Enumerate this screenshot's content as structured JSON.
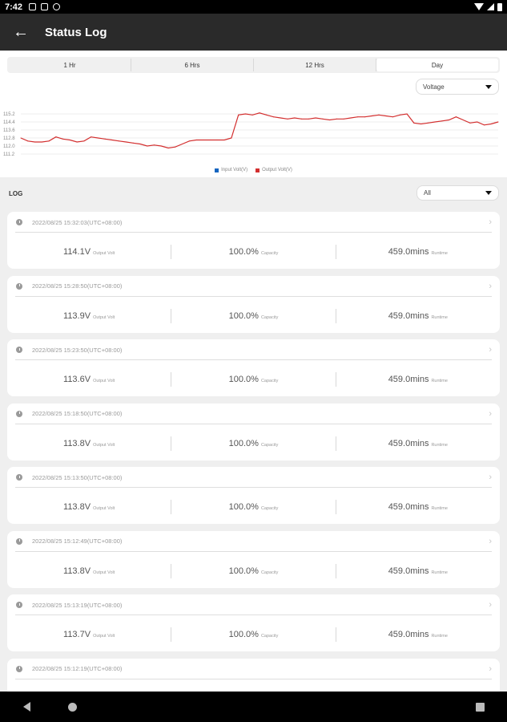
{
  "status_bar": {
    "time": "7:42"
  },
  "app_bar": {
    "title": "Status Log"
  },
  "range_tabs": [
    {
      "label": "1 Hr",
      "active": false
    },
    {
      "label": "6 Hrs",
      "active": false
    },
    {
      "label": "12 Hrs",
      "active": false
    },
    {
      "label": "Day",
      "active": true
    }
  ],
  "metric_select": {
    "value": "Voltage"
  },
  "chart_data": {
    "type": "line",
    "y_ticks": [
      "115.2",
      "114.4",
      "113.6",
      "112.8",
      "112.0",
      "111.2"
    ],
    "ylim": [
      111.2,
      115.2
    ],
    "grid": true,
    "legend_placement": "bottom-center",
    "series": [
      {
        "name": "Input Volt(V)",
        "color": "#1565c0",
        "values": []
      },
      {
        "name": "Output Volt(V)",
        "color": "#d32f2f",
        "values": [
          112.8,
          112.5,
          112.4,
          112.4,
          112.5,
          112.9,
          112.7,
          112.6,
          112.4,
          112.5,
          112.9,
          112.8,
          112.7,
          112.6,
          112.5,
          112.4,
          112.3,
          112.2,
          112.0,
          112.1,
          112.0,
          111.8,
          111.9,
          112.2,
          112.5,
          112.6,
          112.6,
          112.6,
          112.6,
          112.6,
          112.8,
          115.1,
          115.2,
          115.1,
          115.3,
          115.1,
          114.9,
          114.8,
          114.7,
          114.8,
          114.7,
          114.7,
          114.8,
          114.7,
          114.6,
          114.7,
          114.7,
          114.8,
          114.9,
          114.9,
          115.0,
          115.1,
          115.0,
          114.9,
          115.1,
          115.2,
          114.3,
          114.2,
          114.3,
          114.4,
          114.5,
          114.6,
          114.9,
          114.6,
          114.3,
          114.4,
          114.1,
          114.2,
          114.4
        ]
      }
    ]
  },
  "log": {
    "label": "LOG",
    "filter": {
      "value": "All"
    },
    "entries": [
      {
        "timestamp": "2022/08/25 15:32:03(UTC+08:00)",
        "volt": "114.1V",
        "volt_unit": "Output Volt",
        "capacity": "100.0%",
        "capacity_unit": "Capacity",
        "runtime": "459.0mins",
        "runtime_unit": "Runtime"
      },
      {
        "timestamp": "2022/08/25 15:28:50(UTC+08:00)",
        "volt": "113.9V",
        "volt_unit": "Output Volt",
        "capacity": "100.0%",
        "capacity_unit": "Capacity",
        "runtime": "459.0mins",
        "runtime_unit": "Runtime"
      },
      {
        "timestamp": "2022/08/25 15:23:50(UTC+08:00)",
        "volt": "113.6V",
        "volt_unit": "Output Volt",
        "capacity": "100.0%",
        "capacity_unit": "Capacity",
        "runtime": "459.0mins",
        "runtime_unit": "Runtime"
      },
      {
        "timestamp": "2022/08/25 15:18:50(UTC+08:00)",
        "volt": "113.8V",
        "volt_unit": "Output Volt",
        "capacity": "100.0%",
        "capacity_unit": "Capacity",
        "runtime": "459.0mins",
        "runtime_unit": "Runtime"
      },
      {
        "timestamp": "2022/08/25 15:13:50(UTC+08:00)",
        "volt": "113.8V",
        "volt_unit": "Output Volt",
        "capacity": "100.0%",
        "capacity_unit": "Capacity",
        "runtime": "459.0mins",
        "runtime_unit": "Runtime"
      },
      {
        "timestamp": "2022/08/25 15:12:49(UTC+08:00)",
        "volt": "113.8V",
        "volt_unit": "Output Volt",
        "capacity": "100.0%",
        "capacity_unit": "Capacity",
        "runtime": "459.0mins",
        "runtime_unit": "Runtime"
      },
      {
        "timestamp": "2022/08/25 15:13:19(UTC+08:00)",
        "volt": "113.7V",
        "volt_unit": "Output Volt",
        "capacity": "100.0%",
        "capacity_unit": "Capacity",
        "runtime": "459.0mins",
        "runtime_unit": "Runtime"
      },
      {
        "timestamp": "2022/08/25 15:12:19(UTC+08:00)",
        "volt": "",
        "volt_unit": "",
        "capacity": "",
        "capacity_unit": "",
        "runtime": "",
        "runtime_unit": ""
      }
    ]
  }
}
